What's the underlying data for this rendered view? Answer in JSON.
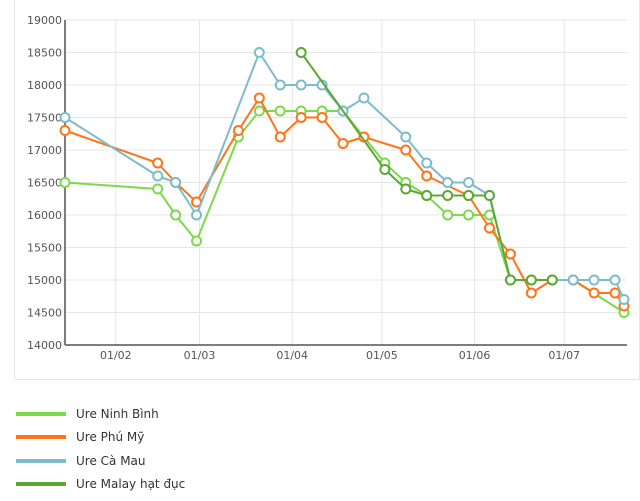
{
  "chart_data": {
    "type": "line",
    "y_ticks": [
      14000,
      14500,
      15000,
      15500,
      16000,
      16500,
      17000,
      17500,
      18000,
      18500,
      19000
    ],
    "ylim": [
      14000,
      19000
    ],
    "x_ticks": [
      {
        "day": 1,
        "label": "01/02"
      },
      {
        "day": 29,
        "label": "01/03"
      },
      {
        "day": 60,
        "label": "01/04"
      },
      {
        "day": 90,
        "label": "01/05"
      },
      {
        "day": 121,
        "label": "01/06"
      },
      {
        "day": 151,
        "label": "01/07"
      }
    ],
    "xlim_day": [
      -16,
      172
    ],
    "grid": true,
    "legend_position": "bottom",
    "series": [
      {
        "name": "Ure Ninh Bình",
        "color": "#7ED84B",
        "points": [
          [
            -16,
            16500
          ],
          [
            15,
            16400
          ],
          [
            21,
            16000
          ],
          [
            28,
            15600
          ],
          [
            42,
            17200
          ],
          [
            49,
            17600
          ],
          [
            56,
            17600
          ],
          [
            63,
            17600
          ],
          [
            70,
            17600
          ],
          [
            77,
            17600
          ],
          [
            91,
            16800
          ],
          [
            98,
            16500
          ],
          [
            105,
            16300
          ],
          [
            112,
            16000
          ],
          [
            119,
            16000
          ],
          [
            126,
            16000
          ],
          [
            133,
            15000
          ],
          [
            147,
            15000
          ],
          [
            154,
            15000
          ],
          [
            171,
            14500
          ]
        ]
      },
      {
        "name": "Ure Phú Mỹ",
        "color": "#FF7417",
        "points": [
          [
            -16,
            17300
          ],
          [
            15,
            16800
          ],
          [
            21,
            16500
          ],
          [
            28,
            16200
          ],
          [
            42,
            17300
          ],
          [
            49,
            17800
          ],
          [
            56,
            17200
          ],
          [
            63,
            17500
          ],
          [
            70,
            17500
          ],
          [
            77,
            17100
          ],
          [
            84,
            17200
          ],
          [
            98,
            17000
          ],
          [
            105,
            16600
          ],
          [
            119,
            16300
          ],
          [
            126,
            15800
          ],
          [
            133,
            15400
          ],
          [
            140,
            14800
          ],
          [
            147,
            15000
          ],
          [
            154,
            15000
          ],
          [
            161,
            14800
          ],
          [
            168,
            14800
          ],
          [
            171,
            14600
          ]
        ]
      },
      {
        "name": "Ure Cà Mau",
        "color": "#7CBCCB",
        "points": [
          [
            -16,
            17500
          ],
          [
            15,
            16600
          ],
          [
            21,
            16500
          ],
          [
            28,
            16000
          ],
          [
            49,
            18500
          ],
          [
            56,
            18000
          ],
          [
            63,
            18000
          ],
          [
            70,
            18000
          ],
          [
            77,
            17600
          ],
          [
            84,
            17800
          ],
          [
            98,
            17200
          ],
          [
            105,
            16800
          ],
          [
            112,
            16500
          ],
          [
            119,
            16500
          ],
          [
            126,
            16300
          ],
          [
            133,
            15000
          ],
          [
            140,
            15000
          ],
          [
            154,
            15000
          ],
          [
            161,
            15000
          ],
          [
            168,
            15000
          ],
          [
            171,
            14700
          ]
        ]
      },
      {
        "name": "Ure Malay hạt đục",
        "color": "#5BA835",
        "points": [
          [
            63,
            18500
          ],
          [
            91,
            16700
          ],
          [
            98,
            16400
          ],
          [
            105,
            16300
          ],
          [
            112,
            16300
          ],
          [
            119,
            16300
          ],
          [
            126,
            16300
          ],
          [
            133,
            15000
          ],
          [
            140,
            15000
          ],
          [
            147,
            15000
          ]
        ]
      }
    ]
  }
}
